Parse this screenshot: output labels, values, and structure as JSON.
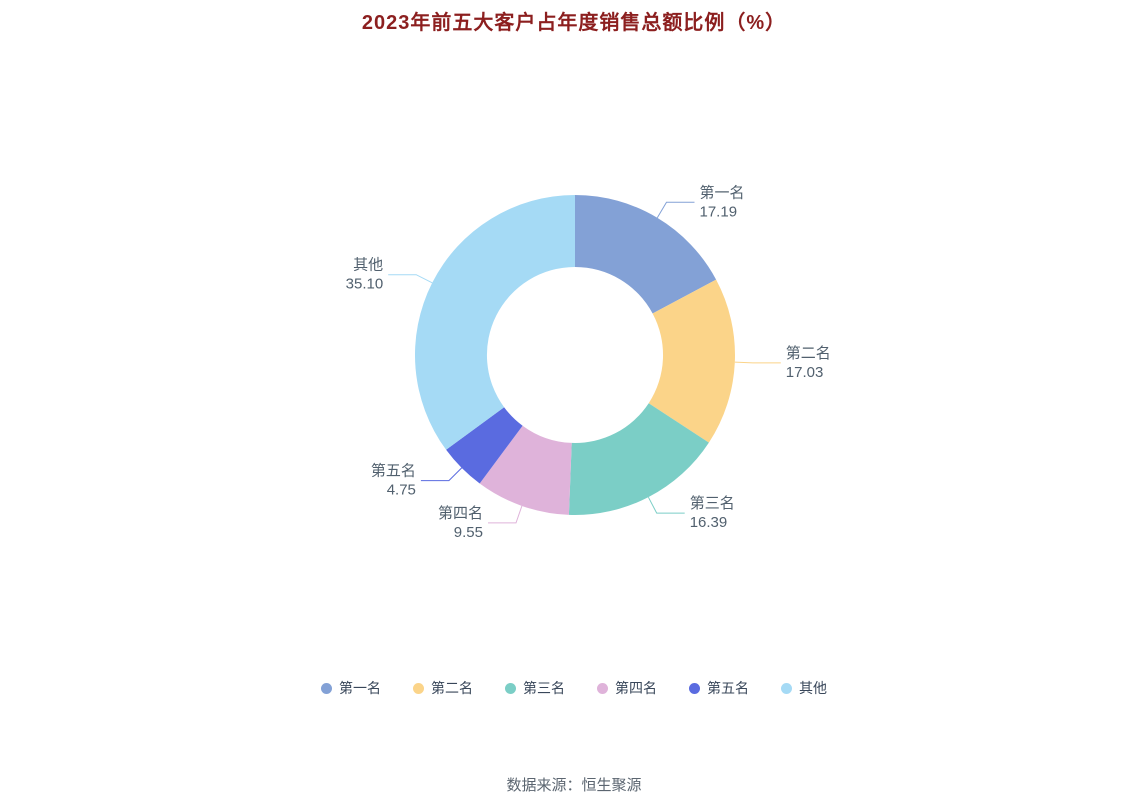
{
  "title": "2023年前五大客户占年度销售总额比例（%）",
  "title_color": "#8c1f1f",
  "source": "数据来源：恒生聚源",
  "chart_data": {
    "type": "pie",
    "subtype": "donut",
    "title": "2023年前五大客户占年度销售总额比例（%）",
    "legend_position": "bottom",
    "label_color": "#51606e",
    "inner_radius_ratio": 0.55,
    "start_angle": "top",
    "direction": "clockwise",
    "slices": [
      {
        "name": "第一名",
        "value": 17.19,
        "label": "17.19",
        "color": "#83a1d6"
      },
      {
        "name": "第二名",
        "value": 17.03,
        "label": "17.03",
        "color": "#fbd489"
      },
      {
        "name": "第三名",
        "value": 16.39,
        "label": "16.39",
        "color": "#7bcec6"
      },
      {
        "name": "第四名",
        "value": 9.55,
        "label": "9.55",
        "color": "#dfb3da"
      },
      {
        "name": "第五名",
        "value": 4.75,
        "label": "4.75",
        "color": "#5a6be0"
      },
      {
        "name": "其他",
        "value": 35.1,
        "label": "35.10",
        "color": "#a5daf5"
      }
    ]
  }
}
